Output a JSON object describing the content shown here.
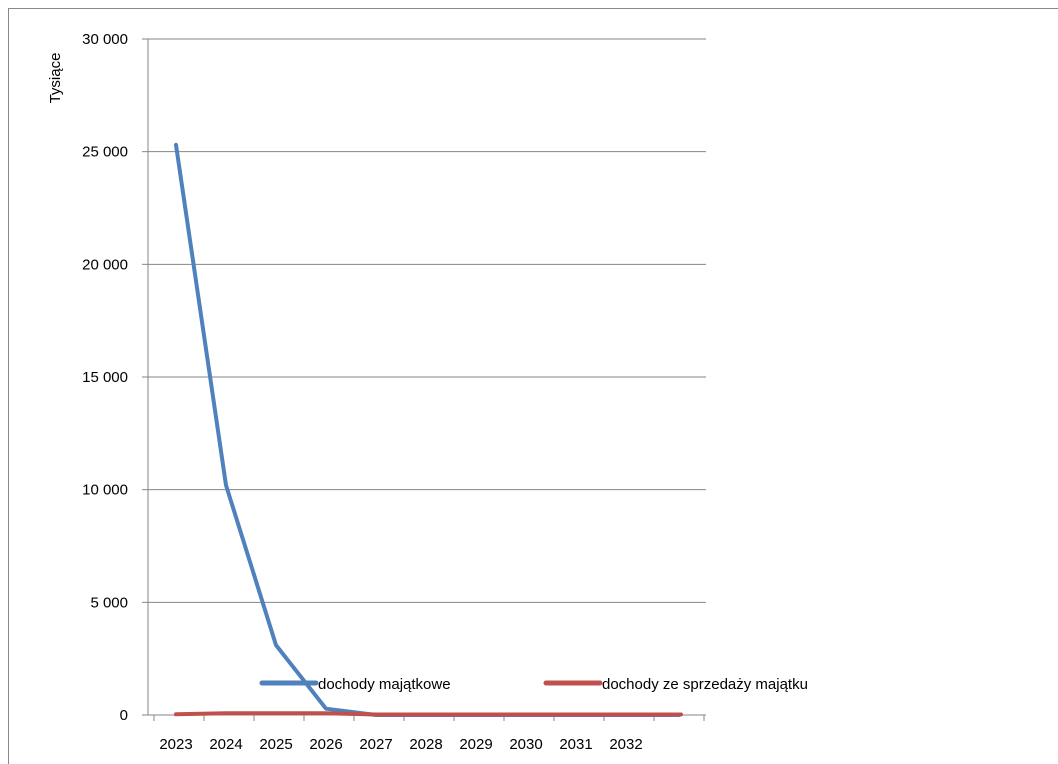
{
  "chart_data": {
    "type": "line",
    "title": "",
    "xlabel": "",
    "ylabel": "Tysiące",
    "ylim": [
      0,
      30000
    ],
    "yticks": [
      0,
      5000,
      10000,
      15000,
      20000,
      25000,
      30000
    ],
    "ytick_labels": [
      "0",
      "5 000",
      "10 000",
      "15 000",
      "20 000",
      "25 000",
      "30 000"
    ],
    "grid": true,
    "legend_position": "bottom-inside",
    "categories": [
      "2023",
      "2024",
      "2025",
      "2026",
      "2027",
      "2028",
      "2029",
      "2030",
      "2031",
      "2032"
    ],
    "series": [
      {
        "name": "dochody majątkowe",
        "color": "#4F81BD",
        "values": [
          25300,
          10200,
          3100,
          280,
          0,
          0,
          0,
          0,
          0,
          0
        ]
      },
      {
        "name": "dochody ze sprzedaży majątku",
        "color": "#C0504D",
        "values": [
          30,
          80,
          80,
          80,
          20,
          20,
          20,
          20,
          20,
          20
        ]
      }
    ]
  }
}
